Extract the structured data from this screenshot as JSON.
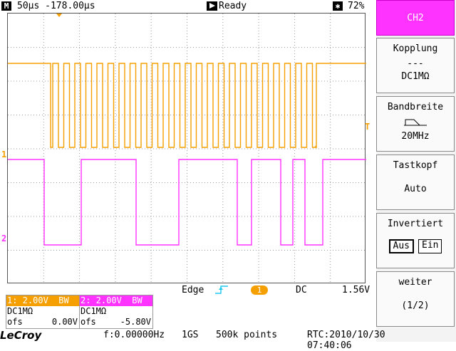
{
  "topbar": {
    "mode_icon": "M",
    "timebase": "50µs -178.00µs",
    "run_state": "Ready",
    "battery": "72%"
  },
  "icons": {
    "mode": "m-icon",
    "run": "play-icon",
    "trigger_mode": "snowflake-icon",
    "trigger_edge": "rising-edge-icon",
    "bandwidth": "lowpass-filter-icon"
  },
  "colors": {
    "ch1": "#f5a000",
    "ch2": "#ff33ff",
    "selected_key": "#ff33ff"
  },
  "markers": {
    "ch1_level": "1",
    "ch2_level": "2",
    "trigger_level": "T"
  },
  "menu": {
    "channel": "CH2",
    "coupling_title": "Kopplung",
    "coupling_symbol": "---",
    "coupling_value": "DC1MΩ",
    "bandwidth_title": "Bandbreite",
    "bandwidth_value": "20MHz",
    "probe_title": "Tastkopf",
    "probe_value": "Auto",
    "invert_title": "Invertiert",
    "invert_off": "Aus",
    "invert_on": "Ein",
    "more_title": "weiter",
    "more_page": "(1/2)"
  },
  "trigger": {
    "type": "Edge",
    "source": "1",
    "coupling": "DC",
    "level": "1.56V"
  },
  "ch1": {
    "header": "1: 2.00V  BW",
    "coupling": "DC1MΩ",
    "ofs_label": "ofs",
    "ofs_value": "0.00V"
  },
  "ch2": {
    "header": "2: 2.00V  BW",
    "coupling": "DC1MΩ",
    "ofs_label": "ofs",
    "ofs_value": "-5.80V"
  },
  "bottombar": {
    "brand": "LeCroy",
    "frequency": "f:0.00000Hz",
    "sample_rate": "1GS",
    "record_length": "500k points",
    "rtc": "RTC:2010/10/30 07:40:06"
  }
}
